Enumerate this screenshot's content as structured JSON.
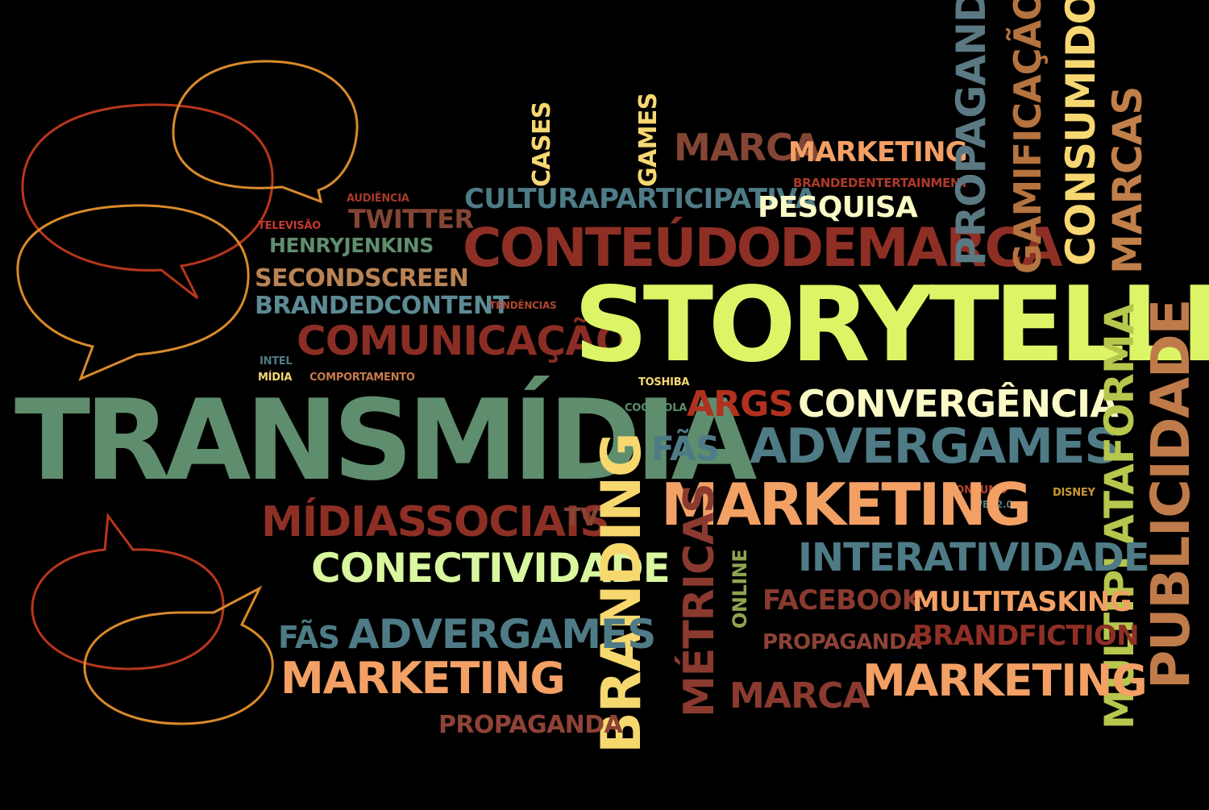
{
  "words": {
    "transmidia": "TRANSMÍDIA",
    "storytelling": "STORYTELLING",
    "conteudodemarca": "CONTEÚDODEMARCA",
    "comunicacao": "COMUNICAÇÃO",
    "brandedcontent": "BRANDEDCONTENT",
    "secondscreen": "SECONDSCREEN",
    "henryjenkins": "HENRYJENKINS",
    "twitter": "TWITTER",
    "audiencia": "AUDIÊNCIA",
    "televisao": "TELEVISÃO",
    "tendencias": "TENDÊNCIAS",
    "intel": "INTEL",
    "midia": "MÍDIA",
    "comportamento": "COMPORTAMENTO",
    "culturaparticipativa": "CULTURAPARTICIPATIVA",
    "pesquisa": "PESQUISA",
    "cases": "CASES",
    "games": "GAMES",
    "marca_top": "MARCA",
    "marketing_top": "MARKETING",
    "brandedentertainment": "BRANDEDENTERTAINMENT",
    "propaganda_vert": "PROPAGANDA",
    "gamificacao": "GAMIFICAÇÃO",
    "consumidor": "CONSUMIDOR",
    "marcas": "MARCAS",
    "toshiba": "TOSHIBA",
    "cocacola": "COCACOLA",
    "args": "ARGS",
    "convergencia": "CONVERGÊNCIA",
    "fas_mid": "FÃS",
    "advergames_mid": "ADVERGAMES",
    "multiplataforma": "MULTIPLATAFORMA",
    "publicidade": "PUBLICIDADE",
    "consumo": "CONSUMO",
    "web20": "WEB2.0",
    "disney": "DISNEY",
    "marketing_mid": "MARKETING",
    "midiassociais": "MÍDIASSOCIAIS",
    "tv": "TV",
    "conectividade": "CONECTIVIDADE",
    "branding": "BRANDING",
    "metricas": "MÉTRICAS",
    "online": "ONLINE",
    "interatividade": "INTERATIVIDADE",
    "facebook": "FACEBOOK",
    "multitasking": "MULTITASKING",
    "propaganda_mid": "PROPAGANDA",
    "brandfiction": "BRANDFICTION",
    "fas_low": "FÃS",
    "advergames_low": "ADVERGAMES",
    "marketing_low": "MARKETING",
    "marca_low": "MARCA",
    "marketing_right": "MARKETING",
    "propaganda_low": "PROPAGANDA"
  },
  "colors": {
    "background": "#000000",
    "bubble_orange": "#d98a2a",
    "bubble_red": "#b8361c"
  },
  "icons": [
    "speech-bubble-icon",
    "speech-bubble-icon",
    "speech-bubble-icon",
    "speech-bubble-icon",
    "speech-bubble-icon",
    "speech-bubble-icon"
  ]
}
